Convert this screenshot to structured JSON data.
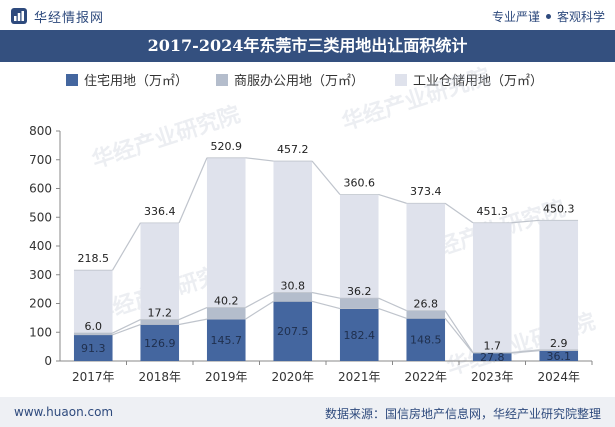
{
  "header": {
    "brand": "华经情报网",
    "slogan_left": "专业严谨",
    "slogan_right": "客观科学"
  },
  "footer": {
    "site": "www.huaon.com",
    "source": "数据来源：国信房地产信息网，华经产业研究院整理"
  },
  "watermark": "华经产业研究院",
  "colors": {
    "residential": "#44669f",
    "commercial": "#b4bdcc",
    "industrial": "#dfe2ec",
    "line": "#bfc4cc",
    "title_bg": "#34507f"
  },
  "chart_data": {
    "type": "bar",
    "stacked": true,
    "title": "2017-2024年东莞市三类用地出让面积统计",
    "categories": [
      "2017年",
      "2018年",
      "2019年",
      "2020年",
      "2021年",
      "2022年",
      "2023年",
      "2024年"
    ],
    "series": [
      {
        "name": "住宅用地（万㎡）",
        "values": [
          91.3,
          126.9,
          145.7,
          207.5,
          182.4,
          148.5,
          27.8,
          36.1
        ]
      },
      {
        "name": "商服办公用地（万㎡）",
        "values": [
          6.0,
          17.2,
          40.2,
          30.8,
          36.2,
          26.8,
          1.7,
          2.9
        ]
      },
      {
        "name": "工业仓储用地（万㎡）",
        "values": [
          218.5,
          336.4,
          520.9,
          457.2,
          360.6,
          373.4,
          451.3,
          450.3
        ]
      }
    ],
    "ylim": [
      0,
      800
    ],
    "yticks": [
      0,
      100,
      200,
      300,
      400,
      500,
      600,
      700,
      800
    ],
    "grid": false,
    "legend_position": "top"
  }
}
